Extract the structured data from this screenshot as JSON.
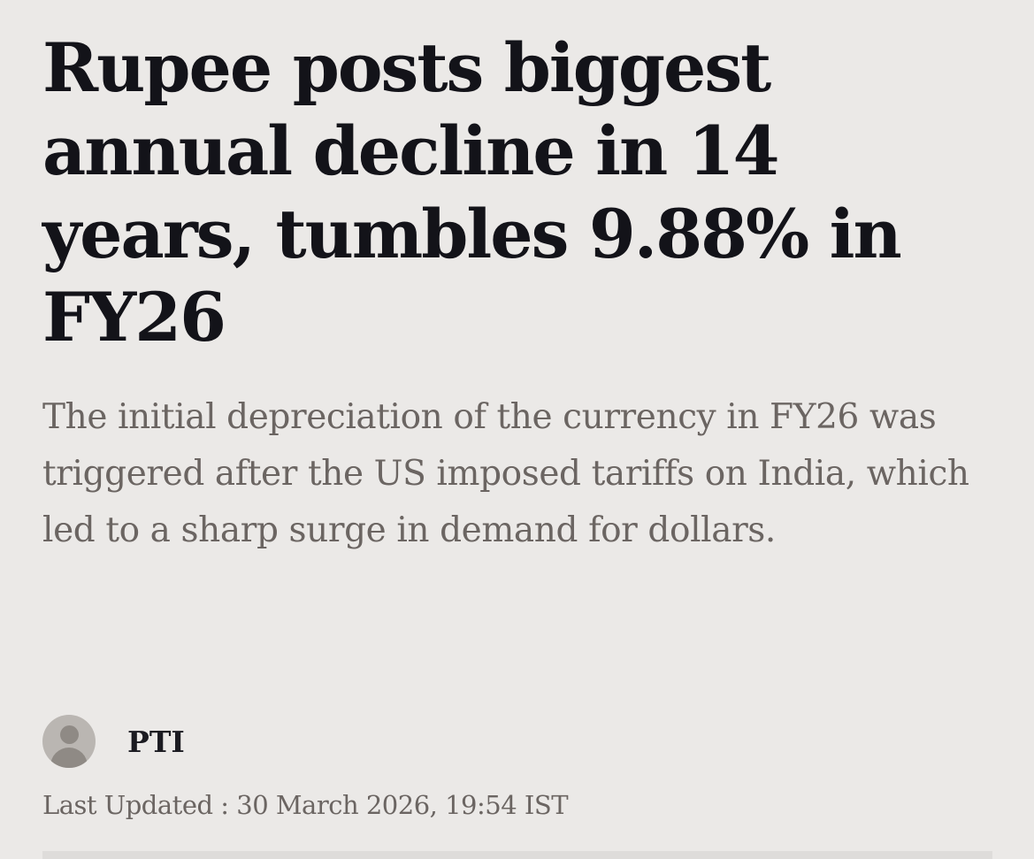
{
  "article": {
    "headline": "Rupee posts biggest annual decline in 14 years, tumbles 9.88% in FY26",
    "summary": "The initial depreciation of the currency in FY26 was triggered after the US imposed tariffs on India, which led to a sharp surge in demand for dollars.",
    "author": "PTI",
    "last_updated": "Last Updated : 30 March 2026, 19:54 IST"
  },
  "icons": {
    "avatar": "user-avatar-icon"
  },
  "colors": {
    "background": "#ebe9e7",
    "headline": "#131319",
    "summary": "#6b6562"
  }
}
